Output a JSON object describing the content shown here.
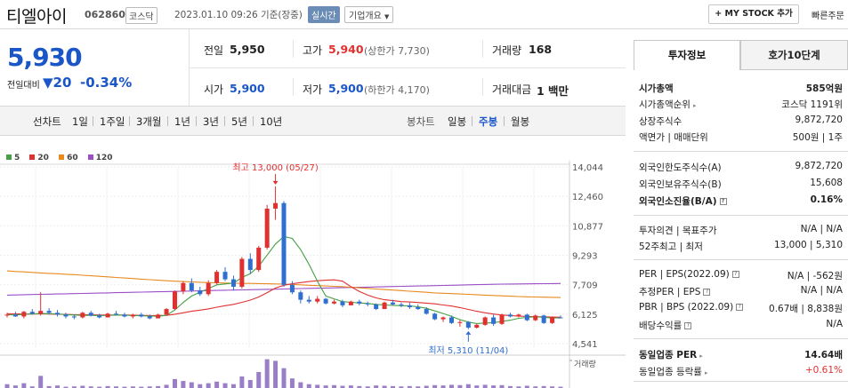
{
  "header": {
    "stock_name": "티엘아이",
    "stock_code": "062860",
    "market": "코스닥",
    "datetime": "2023.01.10 09:26 기준(장중)",
    "live_label": "실시간",
    "company_overview": "기업개요",
    "my_stock_label": "+ MY STOCK 추가",
    "quick_order": "빠른주문"
  },
  "quote": {
    "price": "5,930",
    "change_label": "전일대비",
    "change_arrow": "▼",
    "change_value": "20",
    "change_pct": "-0.34%",
    "prev_close_label": "전일",
    "prev_close": "5,950",
    "high_label": "고가",
    "high": "5,940",
    "upper_limit": "(상한가 7,730)",
    "volume_label": "거래량",
    "volume": "168",
    "open_label": "시가",
    "open": "5,900",
    "low_label": "저가",
    "low": "5,900",
    "lower_limit": "(하한가 4,170)",
    "amount_label": "거래대금",
    "amount": "1 백만"
  },
  "periods": {
    "line_chart_label": "선차트",
    "items": [
      "1일",
      "1주일",
      "3개월",
      "1년",
      "3년",
      "5년",
      "10년"
    ],
    "candle_label": "봉차트",
    "candle_items": [
      "일봉",
      "주봉",
      "월봉"
    ],
    "candle_selected": "주봉"
  },
  "chart_data": {
    "type": "candlestick",
    "y_ticks": [
      "14,044",
      "12,460",
      "10,877",
      "9,293",
      "7,709",
      "6,125",
      "4,541"
    ],
    "ylim": [
      4541,
      14044
    ],
    "ma_legend": [
      {
        "name": "5",
        "color": "#46a046"
      },
      {
        "name": "20",
        "color": "#e03030"
      },
      {
        "name": "60",
        "color": "#e88a20"
      },
      {
        "name": "120",
        "color": "#9a4fc8"
      }
    ],
    "high_annotation": "최고 13,000 (05/27)",
    "low_annotation": "최저 5,310 (11/04)",
    "volume_label": "거래량",
    "candles": [
      [
        6050,
        6200,
        5950,
        6100
      ],
      [
        6100,
        6250,
        5980,
        6000
      ],
      [
        6000,
        6300,
        5900,
        6250
      ],
      [
        6250,
        6400,
        6100,
        6150
      ],
      [
        6150,
        7300,
        6050,
        6300
      ],
      [
        6300,
        6450,
        6100,
        6200
      ],
      [
        6200,
        6350,
        6000,
        6100
      ],
      [
        6100,
        6200,
        5900,
        6000
      ],
      [
        6000,
        6100,
        5850,
        5950
      ],
      [
        5950,
        6250,
        5900,
        6200
      ],
      [
        6200,
        6300,
        6000,
        6050
      ],
      [
        6050,
        6150,
        5900,
        5950
      ],
      [
        5950,
        6200,
        5950,
        6150
      ],
      [
        6150,
        6300,
        6050,
        6100
      ],
      [
        6100,
        6200,
        5950,
        6000
      ],
      [
        6000,
        6150,
        5900,
        6100
      ],
      [
        6100,
        6200,
        5950,
        6000
      ],
      [
        6000,
        6100,
        5850,
        5900
      ],
      [
        5900,
        6150,
        5900,
        6100
      ],
      [
        6100,
        6450,
        6050,
        6400
      ],
      [
        6400,
        7400,
        6350,
        7350
      ],
      [
        7350,
        7900,
        7200,
        7800
      ],
      [
        7800,
        8050,
        7300,
        7400
      ],
      [
        7400,
        7600,
        7100,
        7200
      ],
      [
        7200,
        7950,
        7100,
        7800
      ],
      [
        7800,
        8500,
        7700,
        8400
      ],
      [
        8400,
        8650,
        7900,
        8000
      ],
      [
        8000,
        8200,
        7400,
        7600
      ],
      [
        7600,
        9200,
        7500,
        9100
      ],
      [
        9100,
        9400,
        8300,
        8500
      ],
      [
        8500,
        9800,
        8400,
        9700
      ],
      [
        9700,
        12000,
        9600,
        11800
      ],
      [
        11800,
        13000,
        11200,
        12100
      ],
      [
        12100,
        12200,
        7600,
        7700
      ],
      [
        7700,
        7900,
        7200,
        7300
      ],
      [
        7300,
        7400,
        6700,
        6900
      ],
      [
        6900,
        7100,
        6700,
        6800
      ],
      [
        6800,
        7100,
        6700,
        6950
      ],
      [
        6950,
        7000,
        6650,
        6700
      ],
      [
        6700,
        6900,
        6650,
        6800
      ],
      [
        6800,
        6900,
        6500,
        6600
      ],
      [
        6600,
        6850,
        6600,
        6800
      ],
      [
        6800,
        6900,
        6600,
        6700
      ],
      [
        6700,
        6800,
        6550,
        6650
      ],
      [
        6650,
        6700,
        6350,
        6400
      ],
      [
        6400,
        6800,
        6400,
        6750
      ],
      [
        6750,
        6900,
        6600,
        6650
      ],
      [
        6650,
        6750,
        6500,
        6600
      ],
      [
        6600,
        6750,
        6400,
        6500
      ],
      [
        6500,
        6650,
        6350,
        6400
      ],
      [
        6400,
        6500,
        6100,
        6150
      ],
      [
        6150,
        6200,
        5800,
        5850
      ],
      [
        5850,
        6000,
        5700,
        5950
      ],
      [
        5950,
        6050,
        5600,
        5650
      ],
      [
        5650,
        5800,
        5450,
        5700
      ],
      [
        5700,
        5750,
        5310,
        5400
      ],
      [
        5400,
        5600,
        5350,
        5550
      ],
      [
        5550,
        6000,
        5500,
        5950
      ],
      [
        5950,
        6100,
        5500,
        5600
      ],
      [
        5600,
        6150,
        5550,
        6100
      ],
      [
        6100,
        6200,
        5950,
        6000
      ],
      [
        6000,
        6150,
        5950,
        6100
      ],
      [
        6100,
        6150,
        5750,
        5800
      ],
      [
        5800,
        6100,
        5750,
        6050
      ],
      [
        6050,
        6100,
        5600,
        5650
      ],
      [
        5650,
        6000,
        5600,
        5950
      ],
      [
        5950,
        6050,
        5900,
        5930
      ]
    ],
    "ma5": [
      6100,
      6080,
      6120,
      6130,
      6160,
      6150,
      6140,
      6100,
      6080,
      6060,
      6060,
      6050,
      6060,
      6080,
      6070,
      6050,
      6040,
      6020,
      6010,
      6060,
      6350,
      6750,
      7100,
      7300,
      7500,
      7700,
      7750,
      7800,
      8100,
      8300,
      8700,
      9300,
      9900,
      10300,
      10200,
      9600,
      8800,
      7900,
      7100,
      6950,
      6800,
      6760,
      6730,
      6700,
      6650,
      6620,
      6600,
      6580,
      6570,
      6520,
      6440,
      6300,
      6160,
      6000,
      5830,
      5700,
      5620,
      5650,
      5670,
      5730,
      5800,
      5900,
      5950,
      5990,
      5950,
      5920,
      5920
    ],
    "ma20": [
      6150,
      6140,
      6130,
      6130,
      6140,
      6130,
      6120,
      6110,
      6100,
      6090,
      6090,
      6080,
      6080,
      6080,
      6080,
      6070,
      6060,
      6050,
      6050,
      6060,
      6120,
      6200,
      6280,
      6340,
      6410,
      6500,
      6580,
      6650,
      6760,
      6880,
      7050,
      7280,
      7530,
      7680,
      7760,
      7820,
      7880,
      7920,
      7950,
      7970,
      7900,
      7600,
      7350,
      7150,
      7000,
      6900,
      6850,
      6800,
      6780,
      6750,
      6720,
      6680,
      6620,
      6560,
      6480,
      6380,
      6280,
      6200,
      6130,
      6080,
      6050,
      6020,
      6000,
      5990,
      5980,
      5970,
      5960
    ],
    "ma60": [
      8450,
      8420,
      8400,
      8370,
      8340,
      8320,
      8300,
      8270,
      8250,
      8220,
      8190,
      8160,
      8130,
      8100,
      8070,
      8040,
      8010,
      7980,
      7950,
      7920,
      7900,
      7880,
      7860,
      7840,
      7820,
      7810,
      7800,
      7790,
      7780,
      7780,
      7770,
      7760,
      7750,
      7740,
      7720,
      7700,
      7680,
      7660,
      7640,
      7620,
      7600,
      7570,
      7540,
      7510,
      7480,
      7450,
      7420,
      7390,
      7360,
      7330,
      7300,
      7270,
      7250,
      7230,
      7210,
      7190,
      7170,
      7150,
      7130,
      7110,
      7090,
      7070,
      7060,
      7050,
      7040,
      7030,
      7020
    ],
    "ma120": [
      7150,
      7160,
      7170,
      7180,
      7190,
      7200,
      7210,
      7220,
      7230,
      7240,
      7250,
      7260,
      7270,
      7280,
      7290,
      7300,
      7310,
      7320,
      7330,
      7340,
      7350,
      7360,
      7370,
      7380,
      7390,
      7400,
      7410,
      7420,
      7430,
      7440,
      7450,
      7460,
      7470,
      7480,
      7490,
      7500,
      7510,
      7520,
      7530,
      7540,
      7550,
      7560,
      7570,
      7580,
      7590,
      7600,
      7610,
      7620,
      7630,
      7640,
      7650,
      7660,
      7670,
      7680,
      7690,
      7700,
      7710,
      7720,
      7730,
      7740,
      7745,
      7750,
      7755,
      7760,
      7765,
      7770,
      7775
    ],
    "volume": [
      0.12,
      0.08,
      0.15,
      0.05,
      0.38,
      0.06,
      0.08,
      0.04,
      0.05,
      0.07,
      0.05,
      0.04,
      0.06,
      0.05,
      0.04,
      0.05,
      0.04,
      0.05,
      0.06,
      0.1,
      0.28,
      0.22,
      0.18,
      0.12,
      0.15,
      0.2,
      0.15,
      0.12,
      0.36,
      0.25,
      0.5,
      0.9,
      0.85,
      0.62,
      0.3,
      0.18,
      0.12,
      0.1,
      0.08,
      0.09,
      0.07,
      0.08,
      0.06,
      0.05,
      0.08,
      0.07,
      0.06,
      0.05,
      0.06,
      0.05,
      0.07,
      0.09,
      0.08,
      0.1,
      0.09,
      0.12,
      0.08,
      0.1,
      0.08,
      0.09,
      0.06,
      0.05,
      0.07,
      0.05,
      0.06,
      0.05,
      0.04
    ]
  },
  "invest_panel": {
    "tab_info": "투자정보",
    "tab_quote": "호가10단계",
    "rows": [
      {
        "k": "시가총액",
        "v": "585억원",
        "bold": true
      },
      {
        "k": "시가총액순위",
        "v": "코스닥 1191위",
        "tri": true
      },
      {
        "k": "상장주식수",
        "v": "9,872,720"
      },
      {
        "k": "액면가 | 매매단위",
        "v": "500원 | 1주"
      },
      {
        "k": "외국인한도주식수(A)",
        "v": "9,872,720"
      },
      {
        "k": "외국인보유주식수(B)",
        "v": "15,608"
      },
      {
        "k": "외국인소진율(B/A)",
        "v": "0.16%",
        "bold": true,
        "q": true
      },
      {
        "k": "투자의견 | 목표주가",
        "v": "N/A | N/A"
      },
      {
        "k": "52주최고 | 최저",
        "v": "13,000 | 5,310"
      },
      {
        "k": "PER | EPS(2022.09)",
        "v": "N/A | -562원",
        "q": true
      },
      {
        "k": "추정PER | EPS",
        "v": "N/A | N/A",
        "q": true
      },
      {
        "k": "PBR | BPS (2022.09)",
        "v": "0.67배 | 8,838원",
        "q": true
      },
      {
        "k": "배당수익률",
        "v": "N/A",
        "q": true
      },
      {
        "k": "동일업종 PER",
        "v": "14.64배",
        "bold": true,
        "tri": true
      },
      {
        "k": "동일업종 등락률",
        "v": "+0.61%",
        "red": true,
        "tri": true
      }
    ]
  }
}
